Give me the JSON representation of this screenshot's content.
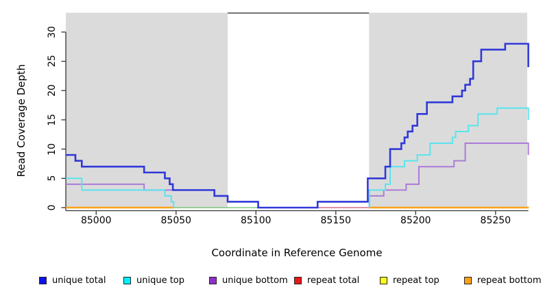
{
  "chart_data": {
    "type": "line",
    "subtype": "step-coverage",
    "xlabel": "Coordinate in Reference Genome",
    "ylabel": "Read Coverage Depth",
    "xlim": [
      84981,
      85270.5
    ],
    "ylim": [
      0,
      33.3
    ],
    "x_ticks": [
      85000,
      85050,
      85100,
      85150,
      85200,
      85250
    ],
    "y_ticks": [
      0,
      5,
      10,
      15,
      20,
      25,
      30
    ],
    "grid": false,
    "shaded_regions": [
      {
        "from": 84981,
        "to": 85082.3,
        "color": "#dbdbdb"
      },
      {
        "from": 85170.8,
        "to": 85269.8,
        "color": "#dbdbdb"
      }
    ],
    "gap_top_line": {
      "from": 85082.3,
      "to": 85170.8,
      "depth": 33.3,
      "color": "#555555"
    },
    "series": [
      {
        "name": "baseline-green-unlabeled",
        "color": "#80c880",
        "width": 1.6,
        "segments": [
          {
            "points": [
              [
                85048.5,
                0
              ]
            ],
            "end": 85101.4
          }
        ]
      },
      {
        "name": "repeat total",
        "color": "#d96a85",
        "width": 1.6,
        "segments": [
          {
            "points": [
              [
                85138.6,
                0
              ]
            ],
            "end": 85170.8
          }
        ]
      },
      {
        "name": "repeat top",
        "color": "#f5f520",
        "width": 1.6,
        "segments": []
      },
      {
        "name": "repeat bottom",
        "color": "#ffa018",
        "width": 2.4,
        "segments": [
          {
            "points": [
              [
                84981,
                0
              ]
            ],
            "end": 85048.5
          },
          {
            "points": [
              [
                85170.8,
                0
              ]
            ],
            "end": 85270.8
          }
        ]
      },
      {
        "name": "unique bottom",
        "color": "#ab7bd8",
        "width": 2,
        "segments": [
          {
            "points": [
              [
                84981,
                4
              ],
              [
                85030,
                3
              ],
              [
                85074,
                2
              ],
              [
                85082.3,
                1
              ],
              [
                85101.4,
                0
              ]
            ],
            "end": 85101.4
          },
          {
            "points": [
              [
                85170.8,
                0
              ],
              [
                85171,
                2
              ],
              [
                85180,
                3
              ],
              [
                85194,
                4
              ],
              [
                85202,
                7
              ],
              [
                85224,
                8
              ],
              [
                85231,
                11
              ],
              [
                85270.5,
                9
              ]
            ],
            "end": 85270.5
          }
        ]
      },
      {
        "name": "unique top",
        "color": "#58e4ee",
        "width": 2,
        "segments": [
          {
            "points": [
              [
                84981,
                5
              ],
              [
                84991,
                3
              ],
              [
                85043,
                2
              ],
              [
                85047,
                1
              ],
              [
                85048.5,
                0
              ]
            ],
            "end": 85048.5
          },
          {
            "points": [
              [
                85170.8,
                0
              ],
              [
                85171,
                3
              ],
              [
                85181,
                4
              ],
              [
                85184,
                7
              ],
              [
                85193,
                8
              ],
              [
                85201,
                9
              ],
              [
                85209,
                11
              ],
              [
                85223,
                12
              ],
              [
                85225,
                13
              ],
              [
                85233,
                14
              ],
              [
                85239,
                16
              ],
              [
                85251,
                17
              ],
              [
                85270.5,
                15
              ]
            ],
            "end": 85270.5
          }
        ]
      },
      {
        "name": "unique total",
        "color": "#3038d8",
        "width": 2.6,
        "segments": [
          {
            "points": [
              [
                84981,
                9
              ],
              [
                84987,
                8
              ],
              [
                84991,
                7
              ],
              [
                85030,
                6
              ],
              [
                85043,
                5
              ],
              [
                85046,
                4
              ],
              [
                85048,
                3
              ],
              [
                85074,
                2
              ],
              [
                85082.3,
                1
              ],
              [
                85101.4,
                0
              ],
              [
                85138.6,
                1
              ],
              [
                85170,
                5
              ],
              [
                85181,
                7
              ],
              [
                85184,
                10
              ],
              [
                85191,
                11
              ],
              [
                85193,
                12
              ],
              [
                85195,
                13
              ],
              [
                85198,
                14
              ],
              [
                85201,
                16
              ],
              [
                85207,
                18
              ],
              [
                85223,
                19
              ],
              [
                85229,
                20
              ],
              [
                85231,
                21
              ],
              [
                85234,
                22
              ],
              [
                85236,
                25
              ],
              [
                85241,
                27
              ],
              [
                85256,
                28
              ],
              [
                85270.5,
                24
              ]
            ],
            "end": 85270.5
          }
        ]
      }
    ],
    "legend": [
      {
        "label": "unique total",
        "fill": "#1010ee"
      },
      {
        "label": "unique top",
        "fill": "#00f0ff"
      },
      {
        "label": "unique bottom",
        "fill": "#9030cc"
      },
      {
        "label": "repeat total",
        "fill": "#e81818"
      },
      {
        "label": "repeat top",
        "fill": "#ffff20"
      },
      {
        "label": "repeat bottom",
        "fill": "#ffa018"
      }
    ],
    "legend_position": "bottom",
    "axis_color": "#333333"
  }
}
